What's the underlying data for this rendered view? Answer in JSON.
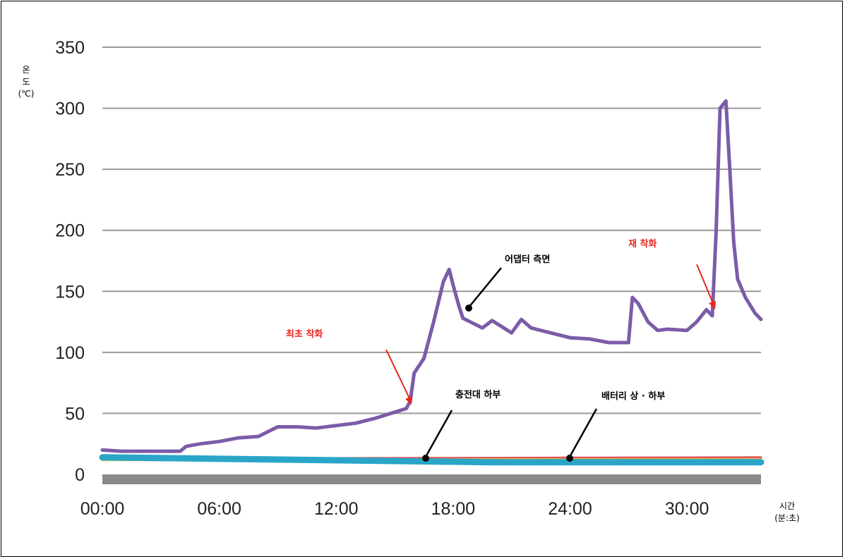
{
  "chart_data": {
    "type": "line",
    "ylabel_lines": [
      "온",
      "도",
      "(℃)"
    ],
    "xlabel_lines": [
      "시간",
      "(분:초)"
    ],
    "ylim": [
      0,
      350
    ],
    "yticks": [
      "0",
      "50",
      "100",
      "150",
      "200",
      "250",
      "300",
      "350"
    ],
    "ytick_values": [
      0,
      50,
      100,
      150,
      200,
      250,
      300,
      350
    ],
    "xlim_min": [
      0,
      33.8
    ],
    "xticks": [
      "00:00",
      "06:00",
      "12:00",
      "18:00",
      "24:00",
      "30:00"
    ],
    "xtick_values_min": [
      0,
      6,
      12,
      18,
      24,
      30
    ],
    "grid": true,
    "colors": {
      "adapter": "#7b5ca8",
      "base": "#2aa5c8",
      "battery_top": "#d8cc4a",
      "battery_bottom": "#e25858",
      "floor": "#8a8a8a",
      "grid": "#9a9a9a",
      "arrow": "#e8261f"
    },
    "series": [
      {
        "key": "adapter",
        "x": [
          0,
          1,
          2,
          3,
          4,
          4.3,
          5,
          6,
          7,
          8,
          8.5,
          9,
          10,
          11,
          12,
          13,
          14,
          15,
          15.6,
          15.8,
          16,
          16.5,
          17,
          17.5,
          17.8,
          18,
          18.3,
          18.5,
          19,
          19.5,
          20,
          21,
          21.5,
          22,
          23,
          24,
          25,
          26,
          27,
          27.2,
          27.5,
          28,
          28.5,
          29,
          30,
          30.5,
          31,
          31.3,
          31.5,
          31.7,
          32,
          32.2,
          32.4,
          32.6,
          33,
          33.5,
          33.8
        ],
        "y": [
          20,
          19,
          19,
          19,
          19,
          23,
          25,
          27,
          30,
          31,
          35,
          39,
          39,
          38,
          40,
          42,
          46,
          51,
          54,
          60,
          83,
          95,
          125,
          158,
          168,
          155,
          138,
          128,
          124,
          120,
          126,
          116,
          127,
          120,
          116,
          112,
          111,
          108,
          108,
          145,
          140,
          125,
          118,
          119,
          118,
          125,
          135,
          130,
          200,
          300,
          306,
          250,
          190,
          160,
          145,
          132,
          127
        ]
      },
      {
        "key": "battery_bottom",
        "x": [
          0,
          33.8
        ],
        "y": [
          13,
          14
        ]
      },
      {
        "key": "battery_top",
        "x": [
          0,
          33.8
        ],
        "y": [
          12,
          12
        ]
      },
      {
        "key": "base",
        "x": [
          0,
          5,
          10,
          15,
          20,
          25,
          30,
          33.8
        ],
        "y": [
          14,
          13,
          12,
          11,
          10,
          10,
          10,
          10
        ]
      }
    ],
    "annotations": [
      {
        "text": "어댑터 측면",
        "style": "black"
      },
      {
        "text": "최초 착화",
        "style": "red"
      },
      {
        "text": "재 착화",
        "style": "red"
      },
      {
        "text": "충전대 하부",
        "style": "black"
      },
      {
        "text": "배터리 상 · 하부",
        "style": "black"
      }
    ]
  }
}
